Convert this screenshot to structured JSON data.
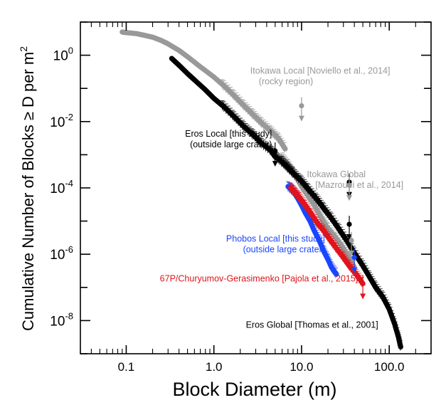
{
  "chart_data": {
    "type": "scatter",
    "xlabel": "Block Diameter (m)",
    "ylabel": "Cumulative Number of Blocks ≥ D per m²",
    "xscale": "log",
    "yscale": "log",
    "xlim": [
      0.03,
      300
    ],
    "ylim": [
      1e-09,
      10
    ],
    "x_ticklabels": [
      "0.1",
      "1.0",
      "10.0",
      "100.0"
    ],
    "x_tickvalues": [
      0.1,
      1,
      10,
      100
    ],
    "y_tickvalues": [
      1,
      0.01,
      0.0001,
      1e-06,
      1e-08
    ],
    "y_ticklabels": [
      {
        "base": "10",
        "exp": "0"
      },
      {
        "base": "10",
        "exp": "-2"
      },
      {
        "base": "10",
        "exp": "-4"
      },
      {
        "base": "10",
        "exp": "-6"
      },
      {
        "base": "10",
        "exp": "-8"
      }
    ],
    "grid": false,
    "legend": "none",
    "series": [
      {
        "name": "Itokawa Local [Noviello et al., 2014]",
        "subtitle": "(rocky region)",
        "color": "#999999",
        "points": [
          [
            0.09,
            5
          ],
          [
            0.1,
            4.8
          ],
          [
            0.13,
            4.5
          ],
          [
            0.16,
            4.0
          ],
          [
            0.2,
            3.5
          ],
          [
            0.25,
            2.8
          ],
          [
            0.3,
            2.2
          ],
          [
            0.4,
            1.4
          ],
          [
            0.5,
            0.9
          ],
          [
            0.7,
            0.45
          ],
          [
            1.0,
            0.22
          ],
          [
            1.3,
            0.12
          ],
          [
            1.7,
            0.06
          ],
          [
            2.2,
            0.03
          ],
          [
            2.8,
            0.016
          ],
          [
            3.5,
            0.009
          ],
          [
            4.5,
            0.005
          ],
          [
            5.5,
            0.003
          ],
          [
            6.5,
            0.0015
          ]
        ]
      },
      {
        "name": "Eros Local [this study]",
        "subtitle": "(outside large crater)",
        "color": "#000000",
        "points": [
          [
            0.33,
            0.8
          ],
          [
            0.4,
            0.5
          ],
          [
            0.5,
            0.28
          ],
          [
            0.6,
            0.18
          ],
          [
            0.8,
            0.09
          ],
          [
            1.0,
            0.05
          ],
          [
            1.3,
            0.028
          ],
          [
            1.7,
            0.014
          ],
          [
            2.2,
            0.007
          ],
          [
            2.8,
            0.004
          ],
          [
            3.5,
            0.0022
          ],
          [
            4.5,
            0.0013
          ],
          [
            5.0,
            0.0009
          ]
        ]
      },
      {
        "name": "Itokawa Global [Mazrouei et al., 2014]",
        "subtitle": "",
        "color": "#999999",
        "points": [
          [
            6.0,
            0.0008
          ],
          [
            7.0,
            0.0005
          ],
          [
            8.0,
            0.0003
          ],
          [
            9.0,
            0.00018
          ],
          [
            10.0,
            0.00011
          ],
          [
            12.0,
            5.5e-05
          ],
          [
            14.0,
            3e-05
          ],
          [
            16.0,
            1.6e-05
          ],
          [
            18.0,
            9e-06
          ],
          [
            20.0,
            6e-06
          ],
          [
            25.0,
            3e-06
          ],
          [
            30.0,
            1.5e-06
          ],
          [
            35.0,
            8e-07
          ],
          [
            40.0,
            4e-07
          ]
        ]
      },
      {
        "name": "Phobos Local [this study]",
        "subtitle": "(outside large crater)",
        "color": "#1a46ff",
        "points": [
          [
            7.0,
            0.00011
          ],
          [
            8.0,
            8e-05
          ],
          [
            9.0,
            5e-05
          ],
          [
            10.0,
            3e-05
          ],
          [
            11.0,
            1.8e-05
          ],
          [
            12.5,
            1e-05
          ],
          [
            14.0,
            5e-06
          ],
          [
            16.0,
            2.5e-06
          ],
          [
            18.0,
            1.2e-06
          ],
          [
            20.0,
            7e-07
          ],
          [
            22.0,
            4e-07
          ],
          [
            25.0,
            2.5e-07
          ]
        ]
      },
      {
        "name": "67P/Churyumov-Gerasimenko [Pajola et al., 2015]",
        "subtitle": "",
        "color": "#e0141c",
        "points": [
          [
            7.5,
            0.0001
          ],
          [
            8.5,
            7e-05
          ],
          [
            9.5,
            5e-05
          ],
          [
            11.0,
            3e-05
          ],
          [
            13.0,
            1.6e-05
          ],
          [
            15.0,
            9e-06
          ],
          [
            18.0,
            5e-06
          ],
          [
            21.0,
            2.8e-06
          ],
          [
            25.0,
            1.5e-06
          ],
          [
            30.0,
            8e-07
          ],
          [
            35.0,
            4.5e-07
          ],
          [
            42.0,
            2.5e-07
          ],
          [
            50.0,
            1.3e-07
          ]
        ]
      },
      {
        "name": "Eros Global [Thomas et al., 2001]",
        "subtitle": "",
        "color": "#000000",
        "points": [
          [
            5.0,
            0.0009
          ],
          [
            6.0,
            0.0006
          ],
          [
            7.0,
            0.0004
          ],
          [
            8.0,
            0.00028
          ],
          [
            10.0,
            0.00016
          ],
          [
            12.0,
            9e-05
          ],
          [
            15.0,
            4.5e-05
          ],
          [
            18.0,
            2.4e-05
          ],
          [
            22.0,
            1.2e-05
          ],
          [
            27.0,
            5.5e-06
          ],
          [
            33.0,
            2.5e-06
          ],
          [
            40.0,
            1.1e-06
          ],
          [
            50.0,
            4.5e-07
          ],
          [
            60.0,
            2e-07
          ],
          [
            70.0,
            1e-07
          ],
          [
            85.0,
            5e-08
          ],
          [
            100.0,
            2.2e-08
          ],
          [
            115.0,
            8e-09
          ],
          [
            128.0,
            3e-09
          ],
          [
            135.0,
            1.6e-09
          ]
        ]
      }
    ],
    "upper_limits": [
      {
        "color": "#000000",
        "points": [
          [
            5.0,
            0.0013
          ],
          [
            35.0,
            0.00015
          ],
          [
            35.0,
            8e-06
          ]
        ]
      },
      {
        "color": "#999999",
        "points": [
          [
            10.0,
            0.03
          ],
          [
            35.0,
            0.00012
          ],
          [
            37.0,
            2.6e-06
          ]
        ]
      },
      {
        "color": "#1a46ff",
        "points": [
          [
            40.0,
            8e-07
          ]
        ]
      },
      {
        "color": "#e0141c",
        "points": [
          [
            50.0,
            1.3e-07
          ]
        ]
      }
    ],
    "annotations": [
      {
        "line1": "Itokawa Local [Noviello et al., 2014]",
        "line2": "(rocky region)",
        "color": "#999999",
        "anchor": "start",
        "x": 2.6,
        "y": 0.28
      },
      {
        "line1": "Eros Local [this study]",
        "line2": "(outside large crater)",
        "color": "#000000",
        "anchor": "end",
        "x": 4.6,
        "y": 0.0035
      },
      {
        "line1": "Itokawa Global",
        "line2": "[Mazrouei et al., 2014]",
        "color": "#999999",
        "anchor": "start",
        "x": 11.5,
        "y": 0.00021
      },
      {
        "line1": "Phobos Local [this study]",
        "line2": "(outside large crater)",
        "color": "#1a46ff",
        "anchor": "end",
        "x": 18.5,
        "y": 2.4e-06
      },
      {
        "line1": "67P/Churyumov-Gerasimenko [Pajola et al., 2015]",
        "line2": "",
        "color": "#e0141c",
        "anchor": "end",
        "x": 44.0,
        "y": 1.5e-07
      },
      {
        "line1": "Eros Global [Thomas et al., 2001]",
        "line2": "",
        "color": "#000000",
        "anchor": "end",
        "x": 75.0,
        "y": 6e-09
      }
    ]
  }
}
